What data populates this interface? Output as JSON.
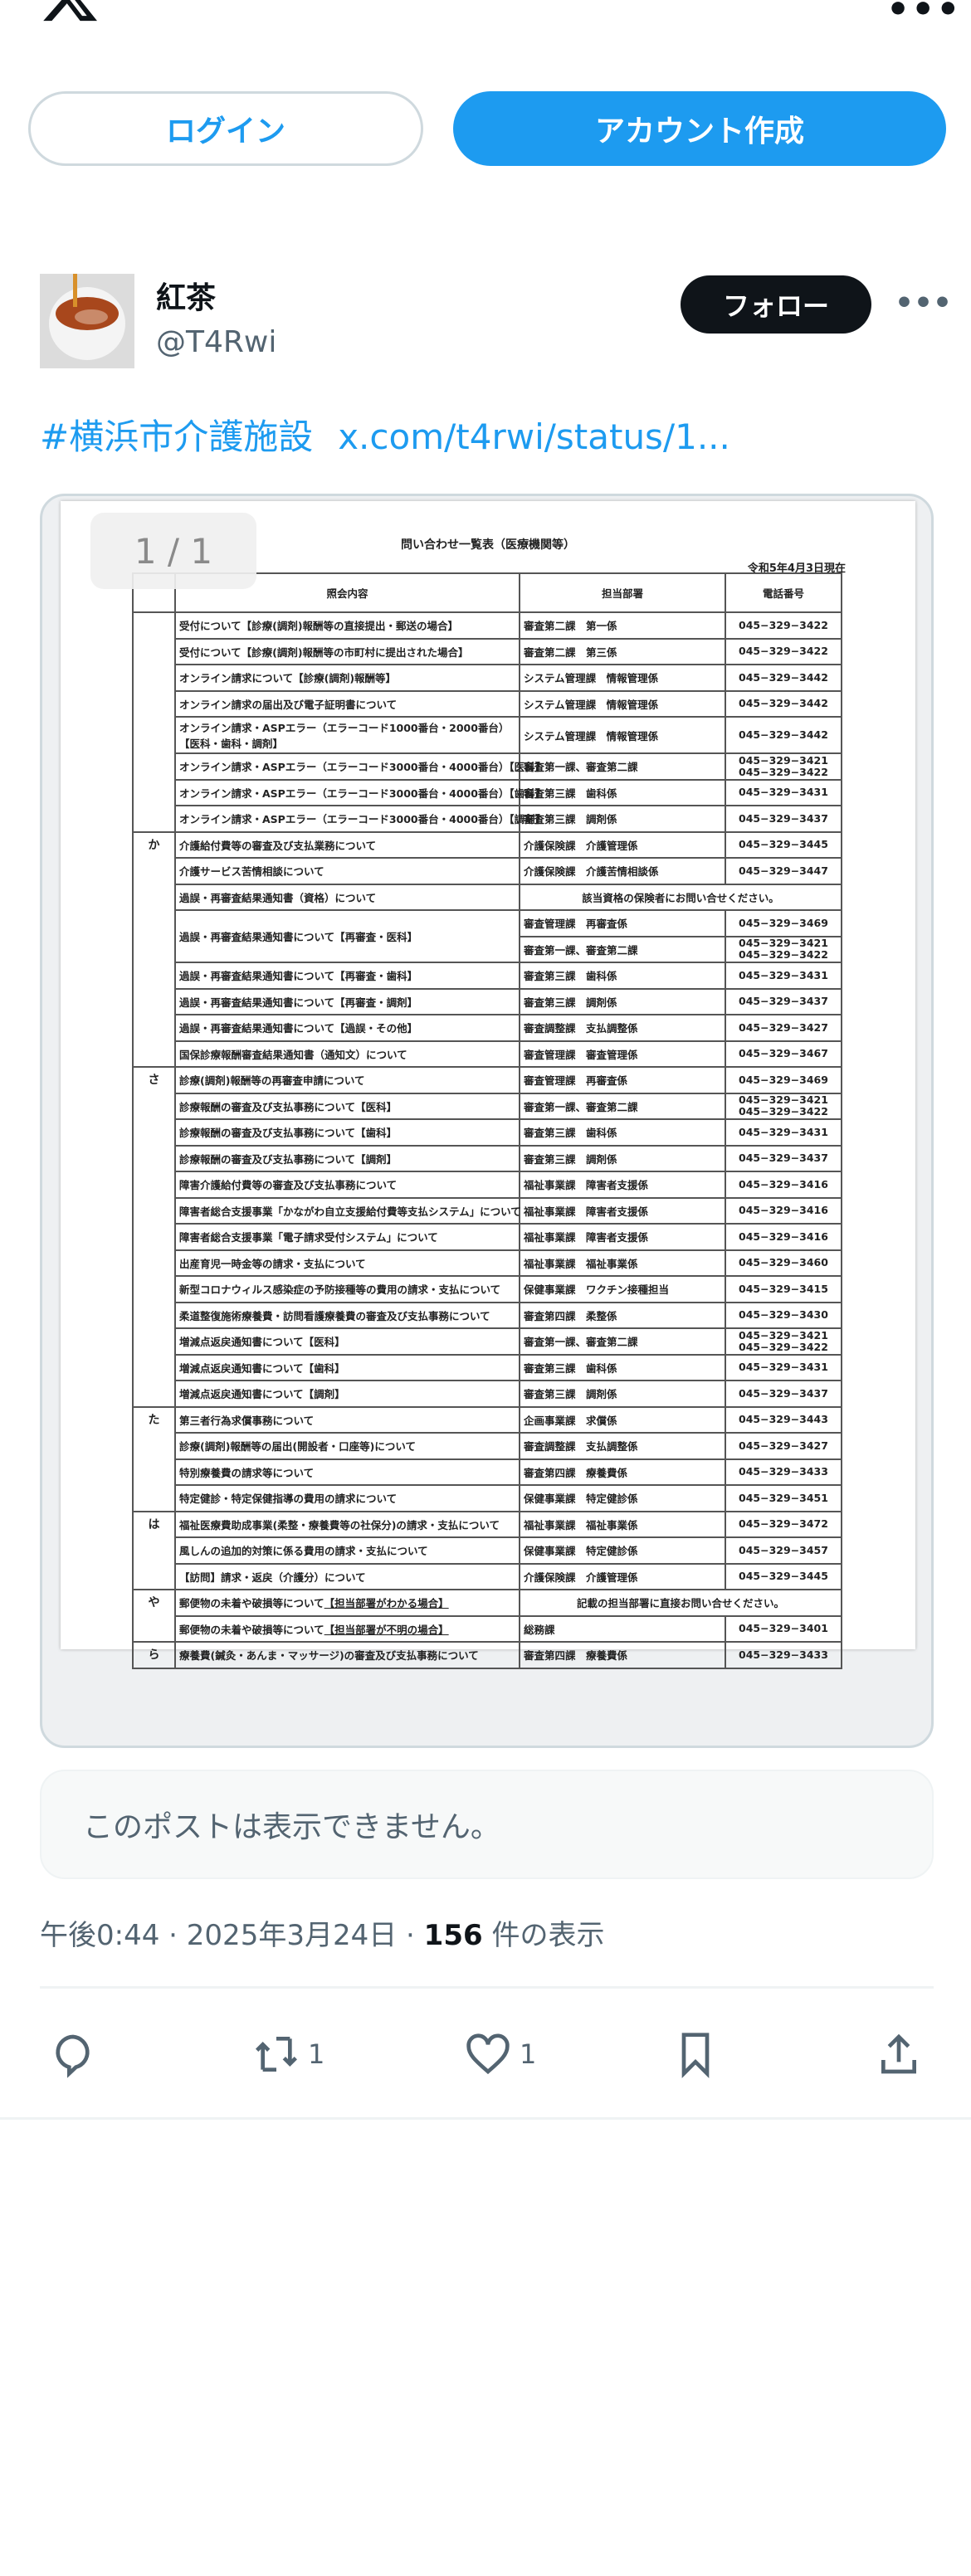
{
  "header": {
    "logo": "X",
    "more_icon": "more-horizontal-icon"
  },
  "auth": {
    "login_label": "ログイン",
    "signup_label": "アカウント作成"
  },
  "post": {
    "display_name": "紅茶",
    "handle": "@T4Rwi",
    "follow_label": "フォロー",
    "hashtag": "#横浜市介護施設",
    "link": "x.com/t4rwi/status/1...",
    "media": {
      "counter": "1 / 1",
      "document": {
        "title": "問い合わせ一覧表（医療機関等）",
        "date": "令和5年4月3日現在",
        "columns": [
          "照会内容",
          "担当部署",
          "電話番号"
        ],
        "sections": [
          {
            "label": "",
            "rows": [
              {
                "item": "受付について【診療(調剤)報酬等の直接提出・郵送の場合】",
                "dept": "審査第二課　第一係",
                "phones": [
                  "045−329−3422"
                ]
              },
              {
                "item": "受付について【診療(調剤)報酬等の市町村に提出された場合】",
                "dept": "審査第二課　第三係",
                "phones": [
                  "045−329−3422"
                ]
              },
              {
                "item": "オンライン請求について【診療(調剤)報酬等】",
                "dept": "システム管理課　情報管理係",
                "phones": [
                  "045−329−3442"
                ]
              },
              {
                "item": "オンライン請求の届出及び電子証明書について",
                "dept": "システム管理課　情報管理係",
                "phones": [
                  "045−329−3442"
                ]
              },
              {
                "item": "オンライン請求・ASPエラー（エラーコード1000番台・2000番台）",
                "item2": "【医科・歯科・調剤】",
                "dept": "システム管理課　情報管理係",
                "phones": [
                  "045−329−3442"
                ]
              },
              {
                "item": "オンライン請求・ASPエラー（エラーコード3000番台・4000番台）【医科】",
                "dept": "審査第一課、審査第二課",
                "phones": [
                  "045−329−3421",
                  "045−329−3422"
                ]
              },
              {
                "item": "オンライン請求・ASPエラー（エラーコード3000番台・4000番台）【歯科】",
                "dept": "審査第三課　歯科係",
                "phones": [
                  "045−329−3431"
                ]
              },
              {
                "item": "オンライン請求・ASPエラー（エラーコード3000番台・4000番台）【調剤】",
                "dept": "審査第三課　調剤係",
                "phones": [
                  "045−329−3437"
                ]
              }
            ]
          },
          {
            "label": "か",
            "rows": [
              {
                "item": "介護給付費等の審査及び支払業務について",
                "dept": "介護保険課　介護管理係",
                "phones": [
                  "045−329−3445"
                ]
              },
              {
                "item": "介護サービス苦情相談について",
                "dept": "介護保険課　介護苦情相談係",
                "phones": [
                  "045−329−3447"
                ]
              },
              {
                "item": "過誤・再審査結果通知書（資格）について",
                "merged": "該当資格の保険者にお問い合せください。"
              },
              {
                "item": "過誤・再審査結果通知書について【再審査・医科】",
                "dept": "審査管理課　再審査係",
                "phones": [
                  "045−329−3469"
                ],
                "sub": {
                  "dept": "審査第一課、審査第二課",
                  "phones": [
                    "045−329−3421",
                    "045−329−3422"
                  ]
                }
              },
              {
                "item": "過誤・再審査結果通知書について【再審査・歯科】",
                "dept": "審査第三課　歯科係",
                "phones": [
                  "045−329−3431"
                ]
              },
              {
                "item": "過誤・再審査結果通知書について【再審査・調剤】",
                "dept": "審査第三課　調剤係",
                "phones": [
                  "045−329−3437"
                ]
              },
              {
                "item": "過誤・再審査結果通知書について【過誤・その他】",
                "dept": "審査調整課　支払調整係",
                "phones": [
                  "045−329−3427"
                ]
              },
              {
                "item": "国保診療報酬審査結果通知書（通知文）について",
                "dept": "審査管理課　審査管理係",
                "phones": [
                  "045−329−3467"
                ]
              }
            ]
          },
          {
            "label": "さ",
            "rows": [
              {
                "item": "診療(調剤)報酬等の再審査申請について",
                "dept": "審査管理課　再審査係",
                "phones": [
                  "045−329−3469"
                ]
              },
              {
                "item": "診療報酬の審査及び支払事務について【医科】",
                "dept": "審査第一課、審査第二課",
                "phones": [
                  "045−329−3421",
                  "045−329−3422"
                ]
              },
              {
                "item": "診療報酬の審査及び支払事務について【歯科】",
                "dept": "審査第三課　歯科係",
                "phones": [
                  "045−329−3431"
                ]
              },
              {
                "item": "診療報酬の審査及び支払事務について【調剤】",
                "dept": "審査第三課　調剤係",
                "phones": [
                  "045−329−3437"
                ]
              },
              {
                "item": "障害介護給付費等の審査及び支払事務について",
                "dept": "福祉事業課　障害者支援係",
                "phones": [
                  "045−329−3416"
                ]
              },
              {
                "item": "障害者総合支援事業「かながわ自立支援給付費等支払システム」について",
                "dept": "福祉事業課　障害者支援係",
                "phones": [
                  "045−329−3416"
                ]
              },
              {
                "item": "障害者総合支援事業「電子請求受付システム」について",
                "dept": "福祉事業課　障害者支援係",
                "phones": [
                  "045−329−3416"
                ]
              },
              {
                "item": "出産育児一時金等の請求・支払について",
                "dept": "福祉事業課　福祉事業係",
                "phones": [
                  "045−329−3460"
                ]
              },
              {
                "item": "新型コロナウィルス感染症の予防接種等の費用の請求・支払について",
                "dept": "保健事業課　ワクチン接種担当",
                "phones": [
                  "045−329−3415"
                ]
              },
              {
                "item": "柔道整復施術療養費・訪問看護療養費の審査及び支払事務について",
                "dept": "審査第四課　柔整係",
                "phones": [
                  "045−329−3430"
                ]
              },
              {
                "item": "増減点返戻通知書について【医科】",
                "dept": "審査第一課、審査第二課",
                "phones": [
                  "045−329−3421",
                  "045−329−3422"
                ]
              },
              {
                "item": "増減点返戻通知書について【歯科】",
                "dept": "審査第三課　歯科係",
                "phones": [
                  "045−329−3431"
                ]
              },
              {
                "item": "増減点返戻通知書について【調剤】",
                "dept": "審査第三課　調剤係",
                "phones": [
                  "045−329−3437"
                ]
              }
            ]
          },
          {
            "label": "た",
            "rows": [
              {
                "item": "第三者行為求償事務について",
                "dept": "企画事業課　求償係",
                "phones": [
                  "045−329−3443"
                ]
              },
              {
                "item": "診療(調剤)報酬等の届出(開設者・口座等)について",
                "dept": "審査調整課　支払調整係",
                "phones": [
                  "045−329−3427"
                ]
              },
              {
                "item": "特別療養費の請求等について",
                "dept": "審査第四課　療養費係",
                "phones": [
                  "045−329−3433"
                ]
              },
              {
                "item": "特定健診・特定保健指導の費用の請求について",
                "dept": "保健事業課　特定健診係",
                "phones": [
                  "045−329−3451"
                ]
              }
            ]
          },
          {
            "label": "は",
            "rows": [
              {
                "item": "福祉医療費助成事業(柔整・療養費等の社保分)の請求・支払について",
                "dept": "福祉事業課　福祉事業係",
                "phones": [
                  "045−329−3472"
                ]
              },
              {
                "item": "風しんの追加的対策に係る費用の請求・支払について",
                "dept": "保健事業課　特定健診係",
                "phones": [
                  "045−329−3457"
                ]
              },
              {
                "item": "【訪問】請求・返戻（介護分）について",
                "dept": "介護保険課　介護管理係",
                "phones": [
                  "045−329−3445"
                ]
              }
            ]
          },
          {
            "label": "や",
            "rows": [
              {
                "item": "郵便物の未着や破損等について",
                "item_ul": "【担当部署がわかる場合】",
                "merged": "記載の担当部署に直接お問い合せください。"
              },
              {
                "item": "郵便物の未着や破損等について",
                "item_ul": "【担当部署が不明の場合】",
                "dept": "総務課",
                "phones": [
                  "045−329−3401"
                ]
              }
            ]
          },
          {
            "label": "ら",
            "rows": [
              {
                "item": "療養費(鍼灸・あんま・マッサージ)の審査及び支払事務について",
                "dept": "審査第四課　療養費係",
                "phones": [
                  "045−329−3433"
                ]
              }
            ]
          }
        ]
      }
    },
    "unavailable_notice": "このポストは表示できません。",
    "time": "午後0:44",
    "date": "2025年3月24日",
    "views_count": "156",
    "views_label": "件の表示",
    "actions": {
      "reply_count": "",
      "repost_count": "1",
      "like_count": "1"
    }
  },
  "colors": {
    "accent": "#1d9bf0",
    "text_secondary": "#536471",
    "follow_bg": "#0f1419"
  }
}
